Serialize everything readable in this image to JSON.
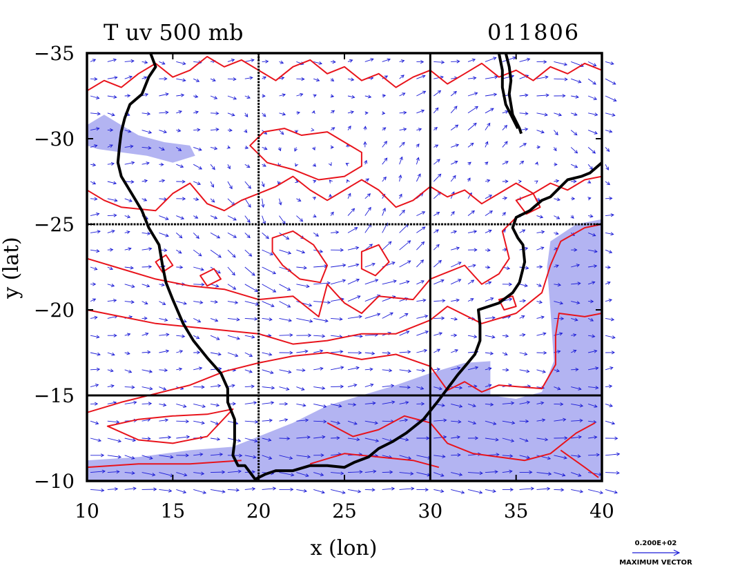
{
  "chart_data": {
    "type": "map-vector",
    "title": "T uv 500 mb",
    "date_label": "011806",
    "xlabel": "x (lon)",
    "ylabel": "y (lat)",
    "xlim": [
      10,
      40
    ],
    "ylim": [
      -10,
      -35
    ],
    "x_ticks": [
      10,
      15,
      20,
      25,
      30,
      35,
      40
    ],
    "x_tick_labels": [
      "10",
      "15",
      "20",
      "25",
      "30",
      "35",
      "40"
    ],
    "y_ticks": [
      -35,
      -30,
      -25,
      -20,
      -15,
      -10
    ],
    "y_tick_labels": [
      "−35",
      "−30",
      "−25",
      "−20",
      "−15",
      "−10"
    ],
    "grid_lines": {
      "x": [
        20,
        30
      ],
      "y": [
        -25,
        -15
      ]
    },
    "legend": {
      "scale_value": "0.200E+02",
      "scale_label": "MAXIMUM VECTOR"
    },
    "colors": {
      "contour": "#e8131b",
      "shade": "#b3b4f2",
      "vector": "#1a1ad6",
      "coast": "#000000"
    },
    "shaded_regions": [
      [
        [
          10,
          -11.2
        ],
        [
          13,
          -11.4
        ],
        [
          16,
          -11.8
        ],
        [
          18.5,
          -12.0
        ],
        [
          20,
          -12.6
        ],
        [
          22,
          -13.4
        ],
        [
          24,
          -14.4
        ],
        [
          26,
          -15.0
        ],
        [
          28,
          -15.6
        ],
        [
          30,
          -16.3
        ],
        [
          32,
          -16.9
        ],
        [
          33.5,
          -17.0
        ],
        [
          33.5,
          -15.0
        ],
        [
          35,
          -14.8
        ],
        [
          36.5,
          -15.2
        ],
        [
          37.2,
          -17.0
        ],
        [
          37.0,
          -20.0
        ],
        [
          36.8,
          -22.5
        ],
        [
          37.0,
          -24.0
        ],
        [
          38.5,
          -25.0
        ],
        [
          40,
          -25.3
        ],
        [
          40,
          -10
        ],
        [
          10,
          -10
        ]
      ],
      [
        [
          10,
          -30.8
        ],
        [
          11,
          -31.4
        ],
        [
          12,
          -30.8
        ],
        [
          13,
          -30.2
        ],
        [
          14.5,
          -29.8
        ],
        [
          16,
          -29.6
        ],
        [
          16.3,
          -29.0
        ],
        [
          15,
          -28.6
        ],
        [
          13.5,
          -29.0
        ],
        [
          12,
          -29.2
        ],
        [
          10.6,
          -29.4
        ],
        [
          10,
          -29.6
        ]
      ]
    ],
    "contours": [
      [
        [
          10,
          -14.0
        ],
        [
          12,
          -14.6
        ],
        [
          14,
          -15.1
        ],
        [
          16,
          -15.6
        ],
        [
          18,
          -16.4
        ],
        [
          20,
          -16.9
        ],
        [
          22,
          -17.3
        ],
        [
          24,
          -17.5
        ],
        [
          26,
          -17.1
        ],
        [
          28,
          -17.4
        ],
        [
          30,
          -16.7
        ],
        [
          31,
          -15.3
        ],
        [
          32,
          -15.8
        ],
        [
          33,
          -15.2
        ],
        [
          34,
          -15.6
        ],
        [
          36.5,
          -15.4
        ],
        [
          37.3,
          -16.8
        ],
        [
          37.3,
          -18.5
        ],
        [
          37.5,
          -19.8
        ],
        [
          39,
          -19.6
        ],
        [
          40,
          -19.8
        ]
      ],
      [
        [
          10,
          -20.0
        ],
        [
          12,
          -19.6
        ],
        [
          14,
          -19.2
        ],
        [
          16,
          -19.0
        ],
        [
          18,
          -18.8
        ],
        [
          20,
          -18.6
        ],
        [
          22,
          -18.0
        ],
        [
          24,
          -18.2
        ],
        [
          26,
          -18.6
        ],
        [
          28,
          -18.6
        ],
        [
          30,
          -19.4
        ],
        [
          31,
          -20.2
        ],
        [
          33,
          -19.2
        ],
        [
          35,
          -19.8
        ],
        [
          36.5,
          -21.0
        ],
        [
          37.0,
          -22.6
        ],
        [
          37.6,
          -24.0
        ],
        [
          39,
          -24.8
        ],
        [
          40,
          -25.0
        ]
      ],
      [
        [
          10,
          -23.0
        ],
        [
          12,
          -22.4
        ],
        [
          14,
          -21.8
        ],
        [
          16,
          -21.4
        ],
        [
          18,
          -21.2
        ],
        [
          20,
          -20.6
        ],
        [
          22,
          -20.8
        ],
        [
          23.5,
          -19.6
        ],
        [
          24,
          -21.5
        ],
        [
          25,
          -20.4
        ],
        [
          26,
          -19.8
        ],
        [
          27,
          -20.8
        ],
        [
          29,
          -20.6
        ],
        [
          30,
          -21.8
        ],
        [
          31,
          -22.2
        ],
        [
          32,
          -22.6
        ],
        [
          33,
          -21.5
        ],
        [
          34,
          -22.1
        ],
        [
          34.6,
          -23.0
        ],
        [
          34.2,
          -24.6
        ],
        [
          35,
          -25.4
        ]
      ],
      [
        [
          10,
          -27.0
        ],
        [
          11,
          -26.4
        ],
        [
          12,
          -26.0
        ],
        [
          14,
          -25.8
        ],
        [
          15,
          -26.8
        ],
        [
          16,
          -27.4
        ],
        [
          17,
          -26.2
        ],
        [
          18,
          -25.8
        ],
        [
          19,
          -26.4
        ],
        [
          20,
          -26.8
        ],
        [
          21,
          -27.2
        ],
        [
          22,
          -27.8
        ],
        [
          23,
          -27.0
        ],
        [
          24,
          -26.4
        ],
        [
          25,
          -27.0
        ],
        [
          26,
          -27.6
        ],
        [
          27,
          -27.0
        ],
        [
          28,
          -26.0
        ],
        [
          29,
          -26.4
        ],
        [
          30,
          -27.2
        ],
        [
          31,
          -26.6
        ],
        [
          32,
          -27.0
        ],
        [
          33,
          -26.2
        ],
        [
          34,
          -26.8
        ],
        [
          35,
          -27.4
        ],
        [
          36,
          -26.8
        ],
        [
          37,
          -27.4
        ],
        [
          38,
          -27.0
        ],
        [
          39,
          -27.6
        ],
        [
          40,
          -27.8
        ]
      ],
      [
        [
          10,
          -32.8
        ],
        [
          11,
          -33.4
        ],
        [
          12,
          -33.0
        ],
        [
          13,
          -33.8
        ],
        [
          14,
          -34.4
        ],
        [
          15,
          -33.6
        ],
        [
          16,
          -34.0
        ],
        [
          17,
          -34.8
        ],
        [
          18,
          -34.2
        ],
        [
          19,
          -34.6
        ],
        [
          20,
          -34.0
        ],
        [
          21,
          -33.4
        ],
        [
          22,
          -34.2
        ],
        [
          23,
          -34.6
        ],
        [
          24,
          -33.8
        ],
        [
          25,
          -34.2
        ],
        [
          26,
          -33.4
        ],
        [
          27,
          -33.8
        ],
        [
          28,
          -33.0
        ],
        [
          29,
          -33.6
        ],
        [
          30,
          -34.0
        ],
        [
          31,
          -33.2
        ],
        [
          32,
          -33.8
        ],
        [
          33,
          -34.4
        ],
        [
          34,
          -33.6
        ],
        [
          35,
          -34.0
        ],
        [
          36,
          -33.4
        ],
        [
          37,
          -34.2
        ],
        [
          38,
          -33.8
        ],
        [
          39,
          -34.4
        ],
        [
          40,
          -34.0
        ]
      ],
      [
        [
          19.5,
          -29.6
        ],
        [
          20.5,
          -28.6
        ],
        [
          22,
          -28.2
        ],
        [
          23.5,
          -27.6
        ],
        [
          25,
          -27.8
        ],
        [
          26,
          -28.4
        ],
        [
          26,
          -29.2
        ],
        [
          25,
          -29.8
        ],
        [
          24,
          -30.4
        ],
        [
          22.5,
          -30.2
        ],
        [
          21.5,
          -30.6
        ],
        [
          20.3,
          -30.4
        ],
        [
          19.5,
          -29.6
        ]
      ],
      [
        [
          20.8,
          -24.2
        ],
        [
          22,
          -24.6
        ],
        [
          23.2,
          -23.8
        ],
        [
          24,
          -22.6
        ],
        [
          23.6,
          -21.6
        ],
        [
          22.4,
          -21.8
        ],
        [
          21.4,
          -22.6
        ],
        [
          20.8,
          -23.4
        ],
        [
          20.8,
          -24.2
        ]
      ],
      [
        [
          26.0,
          -23.4
        ],
        [
          27.0,
          -23.8
        ],
        [
          27.6,
          -22.8
        ],
        [
          26.8,
          -22.0
        ],
        [
          26.0,
          -22.4
        ],
        [
          26.0,
          -23.4
        ]
      ],
      [
        [
          14.0,
          -22.8
        ],
        [
          14.6,
          -23.2
        ],
        [
          15.0,
          -22.6
        ],
        [
          14.4,
          -22.2
        ],
        [
          14.0,
          -22.8
        ]
      ],
      [
        [
          16.6,
          -22.0
        ],
        [
          17.4,
          -22.4
        ],
        [
          17.8,
          -21.8
        ],
        [
          17.0,
          -21.4
        ],
        [
          16.6,
          -22.0
        ]
      ],
      [
        [
          35.0,
          -26.4
        ],
        [
          36.0,
          -26.8
        ],
        [
          36.4,
          -26.0
        ],
        [
          35.6,
          -25.6
        ],
        [
          35.0,
          -26.4
        ]
      ],
      [
        [
          34.0,
          -20.6
        ],
        [
          34.8,
          -20.8
        ],
        [
          35.0,
          -20.2
        ],
        [
          34.3,
          -20.0
        ],
        [
          34.0,
          -20.6
        ]
      ],
      [
        [
          11.2,
          -13.2
        ],
        [
          13,
          -13.6
        ],
        [
          15,
          -13.8
        ],
        [
          17,
          -13.9
        ],
        [
          18.5,
          -14.2
        ],
        [
          17,
          -12.6
        ],
        [
          15,
          -12.2
        ],
        [
          13,
          -12.4
        ],
        [
          11.2,
          -13.2
        ]
      ],
      [
        [
          24,
          -13.4
        ],
        [
          25.5,
          -12.6
        ],
        [
          27,
          -13.0
        ],
        [
          28.5,
          -13.8
        ],
        [
          30,
          -13.4
        ],
        [
          31,
          -12.2
        ],
        [
          32.5,
          -11.6
        ],
        [
          34,
          -11.4
        ],
        [
          35.5,
          -11.2
        ],
        [
          37,
          -11.6
        ],
        [
          38.5,
          -12.8
        ],
        [
          39.6,
          -13.4
        ]
      ],
      [
        [
          23,
          -11.0
        ],
        [
          25,
          -11.6
        ],
        [
          27,
          -11.4
        ],
        [
          29,
          -11.2
        ],
        [
          30.5,
          -10.8
        ]
      ],
      [
        [
          37.6,
          -11.8
        ],
        [
          39,
          -10.8
        ],
        [
          39.8,
          -10.2
        ]
      ],
      [
        [
          10,
          -10.8
        ],
        [
          13,
          -11.0
        ],
        [
          16,
          -11.0
        ],
        [
          19,
          -11.2
        ]
      ]
    ],
    "coastlines": [
      [
        [
          13.7,
          -35
        ],
        [
          14.0,
          -34.2
        ],
        [
          13.6,
          -33.6
        ],
        [
          13.2,
          -32.6
        ],
        [
          12.5,
          -32.0
        ],
        [
          12.2,
          -31.2
        ],
        [
          12.0,
          -30.4
        ],
        [
          11.9,
          -29.6
        ],
        [
          11.8,
          -28.6
        ],
        [
          12.0,
          -27.8
        ],
        [
          12.6,
          -26.8
        ],
        [
          13.2,
          -25.8
        ],
        [
          13.6,
          -24.8
        ],
        [
          14.2,
          -23.8
        ],
        [
          14.4,
          -22.6
        ],
        [
          14.6,
          -21.6
        ],
        [
          15.0,
          -20.6
        ],
        [
          15.6,
          -19.2
        ],
        [
          16.2,
          -18.2
        ],
        [
          17.0,
          -17.2
        ],
        [
          17.8,
          -16.3
        ],
        [
          18.2,
          -15.4
        ],
        [
          18.2,
          -14.6
        ],
        [
          18.6,
          -13.6
        ],
        [
          18.6,
          -12.3
        ],
        [
          18.5,
          -11.5
        ],
        [
          18.8,
          -10.9
        ],
        [
          19.2,
          -10.9
        ],
        [
          19.8,
          -10.1
        ],
        [
          20.4,
          -10.4
        ],
        [
          21.0,
          -10.6
        ],
        [
          22.0,
          -10.6
        ],
        [
          23.0,
          -10.9
        ],
        [
          24.0,
          -10.9
        ],
        [
          25.0,
          -10.8
        ],
        [
          25.6,
          -11.1
        ],
        [
          26.4,
          -11.4
        ],
        [
          27.0,
          -11.9
        ],
        [
          27.8,
          -12.3
        ],
        [
          28.6,
          -12.8
        ],
        [
          29.6,
          -13.6
        ],
        [
          30.4,
          -14.6
        ],
        [
          31.0,
          -15.4
        ],
        [
          31.6,
          -16.2
        ],
        [
          32.1,
          -16.8
        ],
        [
          32.6,
          -17.4
        ],
        [
          32.9,
          -18.2
        ],
        [
          32.9,
          -19.1
        ],
        [
          32.8,
          -20.0
        ],
        [
          34.0,
          -20.4
        ],
        [
          34.8,
          -21.0
        ],
        [
          35.2,
          -21.6
        ],
        [
          35.5,
          -22.8
        ],
        [
          35.4,
          -23.8
        ],
        [
          35.1,
          -24.2
        ],
        [
          34.8,
          -24.8
        ],
        [
          35.0,
          -25.4
        ],
        [
          35.8,
          -25.8
        ],
        [
          36.5,
          -26.4
        ],
        [
          37.0,
          -26.6
        ],
        [
          38.0,
          -27.6
        ],
        [
          38.8,
          -27.8
        ],
        [
          39.3,
          -28.0
        ],
        [
          40,
          -28.6
        ]
      ],
      [
        [
          34.4,
          -35
        ],
        [
          34.6,
          -34.2
        ],
        [
          34.7,
          -33.4
        ],
        [
          34.6,
          -32.6
        ],
        [
          34.8,
          -31.4
        ],
        [
          35.2,
          -30.6
        ],
        [
          35.3,
          -30.3
        ]
      ],
      [
        [
          34.0,
          -35
        ],
        [
          34.2,
          -34.0
        ],
        [
          34.2,
          -33.0
        ],
        [
          34.4,
          -32.0
        ],
        [
          34.8,
          -31.2
        ],
        [
          35.1,
          -30.6
        ]
      ]
    ]
  }
}
